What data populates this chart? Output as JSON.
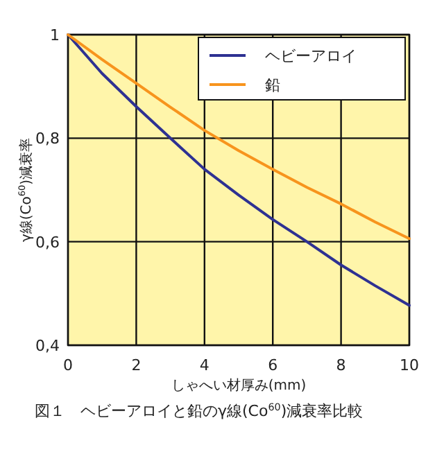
{
  "chart_data": {
    "type": "line",
    "xlabel": "しゃへい材厚み(mm)",
    "ylabel": "γ線(Co$^{60}$)減衰率",
    "annotations": [
      "図１　ヘビーアロイと鉛のγ線(Co$^{60}$)減衰率比較"
    ],
    "x": [
      0,
      1,
      2,
      3,
      4,
      5,
      6,
      7,
      8,
      9,
      10
    ],
    "series": [
      {
        "name": "ヘビーアロイ",
        "color": "#2e3192",
        "values": [
          1.0,
          0.925,
          0.861,
          0.8,
          0.74,
          0.69,
          0.643,
          0.6,
          0.555,
          0.515,
          0.477
        ]
      },
      {
        "name": "鉛",
        "color": "#f7941d",
        "values": [
          1.0,
          0.952,
          0.906,
          0.86,
          0.815,
          0.776,
          0.74,
          0.705,
          0.673,
          0.638,
          0.606
        ]
      }
    ],
    "xlim": [
      0,
      10
    ],
    "xticks": [
      0,
      2,
      4,
      6,
      8,
      10
    ],
    "ylim": [
      0.4,
      1
    ],
    "yticks": [
      {
        "value": 0.4,
        "label": "0,4"
      },
      {
        "value": 0.6,
        "label": "0,6"
      },
      {
        "value": 0.8,
        "label": "0,8"
      },
      1
    ],
    "grid": true,
    "legend": "top right",
    "marker": "none",
    "line_style": "solid"
  }
}
